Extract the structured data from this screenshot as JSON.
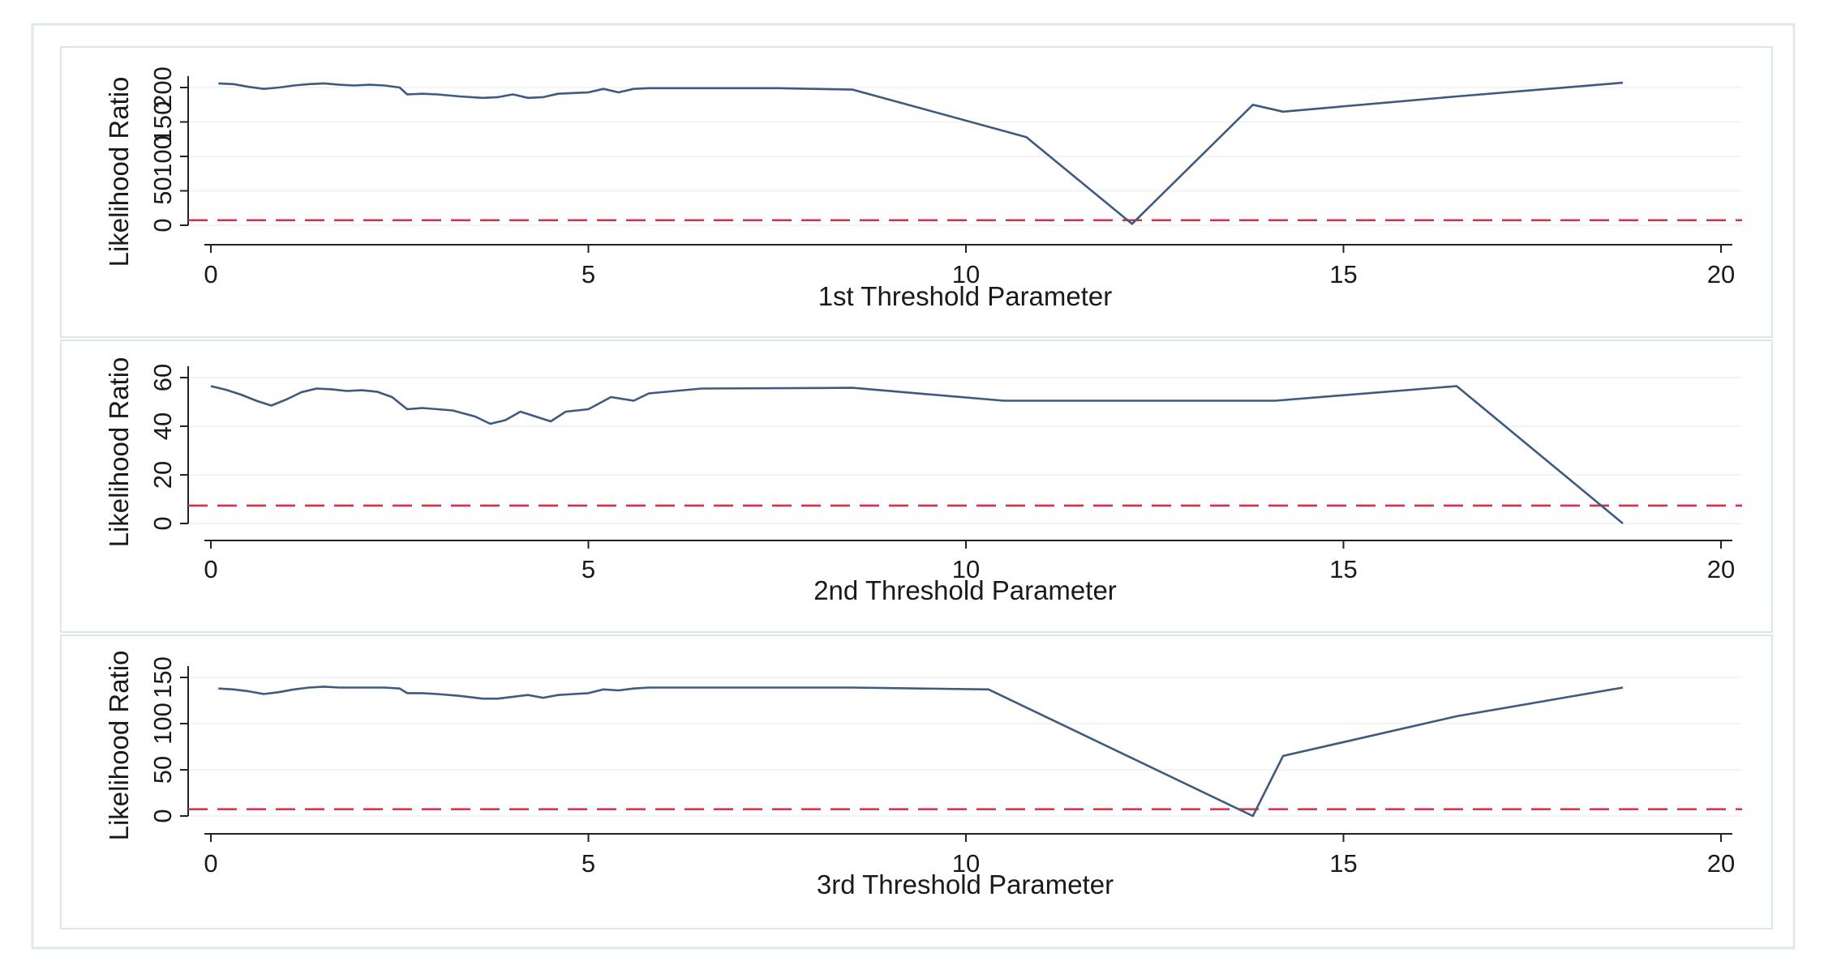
{
  "colors": {
    "series": "#3d5a80",
    "reference": "#d62f47",
    "frame": "#dbe7ee"
  },
  "chart_data": [
    {
      "type": "line",
      "xlabel": "1st Threshold Parameter",
      "ylabel": "Likelihood Ratio",
      "xlim": [
        0,
        20
      ],
      "ylim": [
        0,
        200
      ],
      "x_ticks": [
        "0",
        "5",
        "10",
        "15",
        "20"
      ],
      "y_ticks": [
        "0",
        "50",
        "100",
        "150",
        "200"
      ],
      "grid": true,
      "reference_line": 7.35,
      "series": [
        {
          "x": [
            0.1,
            0.3,
            0.5,
            0.7,
            0.9,
            1.1,
            1.3,
            1.5,
            1.7,
            1.9,
            2.1,
            2.3,
            2.5,
            2.6,
            2.8,
            3.0,
            3.3,
            3.6,
            3.8,
            4.0,
            4.2,
            4.4,
            4.6,
            4.8,
            5.0,
            5.2,
            5.4,
            5.6,
            5.8,
            6.5,
            7.5,
            8.5,
            10.8,
            12.2,
            13.8,
            14.2,
            16.5,
            18.7
          ],
          "y": [
            206,
            205,
            201,
            198,
            200,
            203,
            205,
            206,
            204,
            203,
            204,
            203,
            200,
            190,
            191,
            190,
            187,
            185,
            186,
            190,
            185,
            186,
            191,
            192,
            193,
            198,
            193,
            198,
            199,
            199,
            199,
            197,
            128,
            2,
            175,
            165,
            187,
            207
          ]
        }
      ]
    },
    {
      "type": "line",
      "xlabel": "2nd Threshold Parameter",
      "ylabel": "Likelihood Ratio",
      "xlim": [
        0,
        20
      ],
      "ylim": [
        0,
        60
      ],
      "x_ticks": [
        "0",
        "5",
        "10",
        "15",
        "20"
      ],
      "y_ticks": [
        "0",
        "20",
        "40",
        "60"
      ],
      "grid": true,
      "reference_line": 7.35,
      "series": [
        {
          "x": [
            0,
            0.2,
            0.4,
            0.6,
            0.8,
            1.0,
            1.2,
            1.4,
            1.6,
            1.8,
            2.0,
            2.2,
            2.4,
            2.6,
            2.8,
            3.0,
            3.2,
            3.5,
            3.7,
            3.9,
            4.1,
            4.3,
            4.5,
            4.7,
            5.0,
            5.3,
            5.6,
            5.8,
            6.5,
            8.5,
            10.5,
            14.1,
            16.5,
            18.7
          ],
          "y": [
            56.5,
            55,
            53,
            50.5,
            48.5,
            51,
            54,
            55.5,
            55.2,
            54.5,
            54.8,
            54.2,
            52,
            47,
            47.5,
            47,
            46.5,
            44,
            41,
            42.5,
            46,
            44,
            42,
            46,
            47,
            52,
            50.5,
            53.5,
            55.5,
            55.8,
            50.5,
            50.5,
            56.5,
            0
          ]
        }
      ]
    },
    {
      "type": "line",
      "xlabel": "3rd Threshold Parameter",
      "ylabel": "Likelihood Ratio",
      "xlim": [
        0,
        20
      ],
      "ylim": [
        0,
        150
      ],
      "x_ticks": [
        "0",
        "5",
        "10",
        "15",
        "20"
      ],
      "y_ticks": [
        "0",
        "50",
        "100",
        "150"
      ],
      "grid": true,
      "reference_line": 7.35,
      "series": [
        {
          "x": [
            0.1,
            0.3,
            0.5,
            0.7,
            0.9,
            1.1,
            1.3,
            1.5,
            1.7,
            1.9,
            2.1,
            2.3,
            2.5,
            2.6,
            2.8,
            3.0,
            3.3,
            3.6,
            3.8,
            4.0,
            4.2,
            4.4,
            4.6,
            4.8,
            5.0,
            5.2,
            5.4,
            5.6,
            5.8,
            6.5,
            8.5,
            10.3,
            13.8,
            14.2,
            16.5,
            18.7
          ],
          "y": [
            138,
            137,
            135,
            132,
            134,
            137,
            139,
            140,
            139,
            139,
            139,
            139,
            138,
            133,
            133,
            132,
            130,
            127,
            127,
            129,
            131,
            128,
            131,
            132,
            133,
            137,
            136,
            138,
            139,
            139,
            139,
            137,
            0,
            65,
            108,
            139
          ]
        }
      ]
    }
  ]
}
